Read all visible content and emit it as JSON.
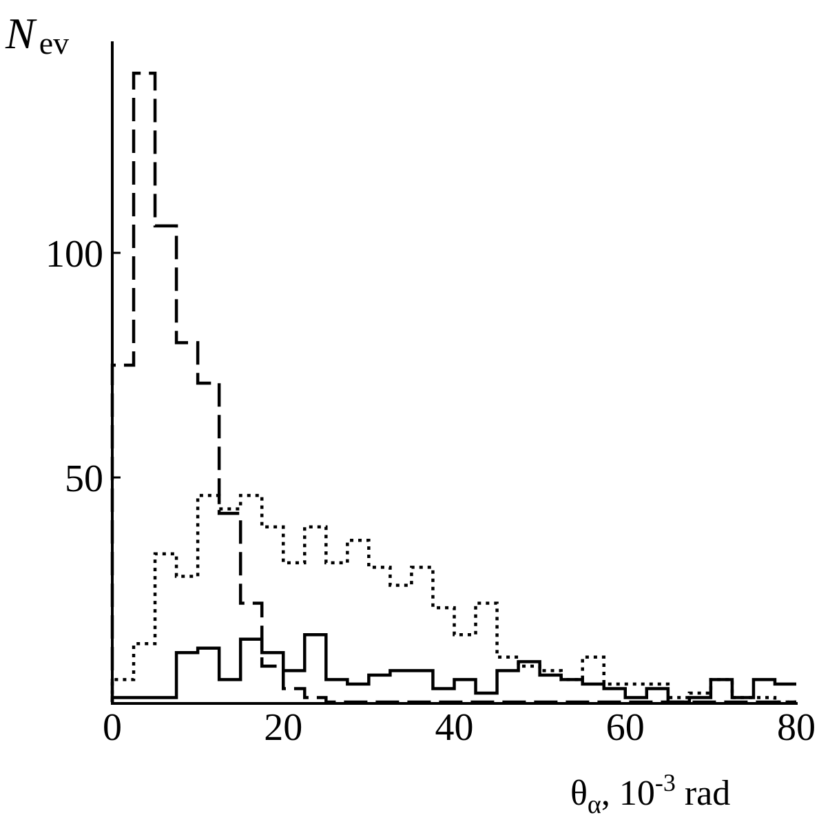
{
  "chart_data": {
    "type": "histogram",
    "title": "",
    "ylabel": {
      "main": "N",
      "sub": "ev"
    },
    "xlabel": {
      "symbol": "θ",
      "sub": "α",
      "rest": ", 10",
      "exp": "-3",
      "unit": " rad"
    },
    "xlim": [
      0,
      80
    ],
    "ylim": [
      0,
      140
    ],
    "x_ticks": [
      0,
      20,
      40,
      60,
      80
    ],
    "y_ticks": [
      50,
      100
    ],
    "bin_width": 2.5,
    "bin_edges": [
      0,
      2.5,
      5,
      7.5,
      10,
      12.5,
      15,
      17.5,
      20,
      22.5,
      25,
      27.5,
      30,
      32.5,
      35,
      37.5,
      40,
      42.5,
      45,
      47.5,
      50,
      52.5,
      55,
      57.5,
      60,
      62.5,
      65,
      67.5,
      70,
      72.5,
      75,
      77.5,
      80
    ],
    "series": [
      {
        "style": "dashed",
        "values": [
          75,
          140,
          106,
          80,
          71,
          42,
          22,
          8,
          3,
          1,
          0,
          0,
          0,
          0,
          0,
          0,
          0,
          0,
          0,
          0,
          0,
          0,
          0,
          0,
          0,
          0,
          0,
          0,
          0,
          0,
          0,
          0
        ]
      },
      {
        "style": "dotted",
        "values": [
          5,
          13,
          33,
          28,
          46,
          43,
          46,
          39,
          31,
          39,
          31,
          36,
          30,
          26,
          30,
          21,
          15,
          22,
          10,
          8,
          7,
          5,
          10,
          4,
          4,
          4,
          1,
          2,
          5,
          1,
          1,
          0
        ]
      },
      {
        "style": "solid",
        "values": [
          1,
          1,
          1,
          11,
          12,
          5,
          14,
          11,
          7,
          15,
          5,
          4,
          6,
          7,
          7,
          3,
          5,
          2,
          7,
          9,
          6,
          5,
          4,
          3,
          1,
          3,
          0,
          1,
          5,
          1,
          5,
          4
        ]
      }
    ]
  }
}
